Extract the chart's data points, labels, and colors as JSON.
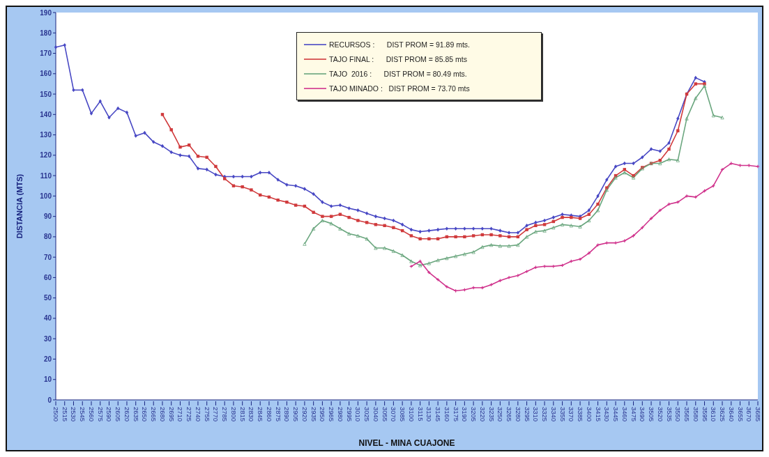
{
  "chart_data": {
    "type": "line",
    "xlabel": "NIVEL - MINA CUAJONE",
    "ylabel": "DISTANCIA (MTS)",
    "categories": [
      "2500",
      "2515",
      "2530",
      "2545",
      "2560",
      "2575",
      "2590",
      "2605",
      "2620",
      "2635",
      "2650",
      "2665",
      "2680",
      "2695",
      "2710",
      "2725",
      "2740",
      "2755",
      "2770",
      "2785",
      "2800",
      "2815",
      "2830",
      "2845",
      "2860",
      "2875",
      "2890",
      "2905",
      "2920",
      "2935",
      "2950",
      "2965",
      "2980",
      "2995",
      "3010",
      "3025",
      "3040",
      "3055",
      "3070",
      "3085",
      "3100",
      "3115",
      "3130",
      "3145",
      "3160",
      "3175",
      "3190",
      "3205",
      "3220",
      "3235",
      "3250",
      "3265",
      "3280",
      "3295",
      "3310",
      "3325",
      "3340",
      "3355",
      "3370",
      "3385",
      "3400",
      "3415",
      "3430",
      "3445",
      "3460",
      "3475",
      "3490",
      "3505",
      "3520",
      "3535",
      "3550",
      "3565",
      "3580",
      "3595",
      "3610",
      "3625",
      "3640",
      "3655",
      "3670",
      "3685"
    ],
    "ylim": [
      0,
      190
    ],
    "yticks": [
      0,
      10,
      20,
      30,
      40,
      50,
      60,
      70,
      80,
      90,
      100,
      110,
      120,
      130,
      140,
      150,
      160,
      170,
      180,
      190
    ],
    "grid": false,
    "legend": "top",
    "line_style": "solid",
    "series": [
      {
        "name": "RECURSOS :      DIST PROM = 91.89 mts.",
        "color": "#4848c4",
        "marker": "diamond",
        "values": [
          173,
          174,
          152,
          152,
          140.5,
          146.5,
          138.5,
          143,
          141,
          129.5,
          131,
          126.5,
          124.5,
          121.5,
          120,
          119.5,
          113.5,
          113,
          110.5,
          109.5,
          109.5,
          109.5,
          109.5,
          111.5,
          111.5,
          108,
          105.5,
          105,
          103.5,
          101,
          97,
          95,
          95.5,
          94,
          93,
          91.5,
          90,
          89,
          88,
          86,
          83.5,
          82.5,
          83,
          83.5,
          84,
          84,
          84,
          84,
          84,
          84,
          83,
          82,
          82,
          85.5,
          87,
          88,
          89.5,
          91,
          90.5,
          90,
          93,
          100,
          108,
          114.5,
          116,
          116,
          119,
          123,
          122,
          126,
          138,
          150,
          158,
          156,
          null,
          null,
          null,
          null,
          null,
          null
        ]
      },
      {
        "name": "TAJO FINAL :      DIST PROM = 85.85 mts",
        "color": "#d03a3c",
        "marker": "square",
        "values": [
          null,
          null,
          null,
          null,
          null,
          null,
          null,
          null,
          null,
          null,
          null,
          null,
          140,
          132.5,
          124,
          125,
          119.5,
          119,
          114.5,
          108.5,
          105,
          104.5,
          103,
          100.5,
          99.5,
          98,
          97,
          95.5,
          95,
          92,
          90,
          90,
          91,
          89.5,
          88,
          87,
          86,
          85.5,
          84.5,
          83,
          80.5,
          79,
          79,
          79,
          80,
          80,
          80,
          80.5,
          81,
          81,
          80.5,
          80,
          80,
          83.5,
          85.5,
          86,
          87.5,
          89.5,
          89.5,
          89,
          91,
          96,
          104,
          110,
          113,
          110,
          114,
          116,
          117.5,
          123,
          132,
          150,
          155,
          155,
          null,
          null,
          null,
          null,
          null,
          null
        ]
      },
      {
        "name": "TAJO  2016 :      DIST PROM = 80.49 mts.",
        "color": "#6aa67e",
        "marker": "triangle",
        "values": [
          null,
          null,
          null,
          null,
          null,
          null,
          null,
          null,
          null,
          null,
          null,
          null,
          null,
          null,
          null,
          null,
          null,
          null,
          null,
          null,
          null,
          null,
          null,
          null,
          null,
          null,
          null,
          null,
          76.5,
          84,
          88,
          86.5,
          84,
          81.5,
          80.5,
          79,
          74.5,
          74.5,
          73,
          71,
          68,
          66,
          67,
          68.5,
          69.5,
          70.5,
          71.5,
          72.5,
          75,
          76,
          75.5,
          75.5,
          76,
          80,
          82.5,
          83,
          84.5,
          86,
          85.5,
          85,
          88,
          93,
          103,
          109,
          111.5,
          109,
          113.5,
          116,
          116,
          118,
          117.5,
          138,
          148,
          154,
          139.5,
          138.5,
          null,
          null,
          null,
          null
        ]
      },
      {
        "name": "TAJO MINADO :   DIST PROM = 73.70 mts",
        "color": "#d0328c",
        "marker": "cross",
        "values": [
          null,
          null,
          null,
          null,
          null,
          null,
          null,
          null,
          null,
          null,
          null,
          null,
          null,
          null,
          null,
          null,
          null,
          null,
          null,
          null,
          null,
          null,
          null,
          null,
          null,
          null,
          null,
          null,
          null,
          null,
          null,
          null,
          null,
          null,
          null,
          null,
          null,
          null,
          null,
          null,
          65.5,
          68,
          62.5,
          59,
          55.5,
          53.5,
          54,
          55,
          55,
          56.5,
          58.5,
          60,
          61,
          63,
          65,
          65.5,
          65.5,
          66,
          68,
          69,
          72,
          76,
          77,
          77,
          78,
          80.5,
          84.5,
          89,
          93,
          96,
          97,
          100,
          99.5,
          102.5,
          105,
          113,
          116,
          115,
          115,
          114.5
        ]
      }
    ]
  }
}
